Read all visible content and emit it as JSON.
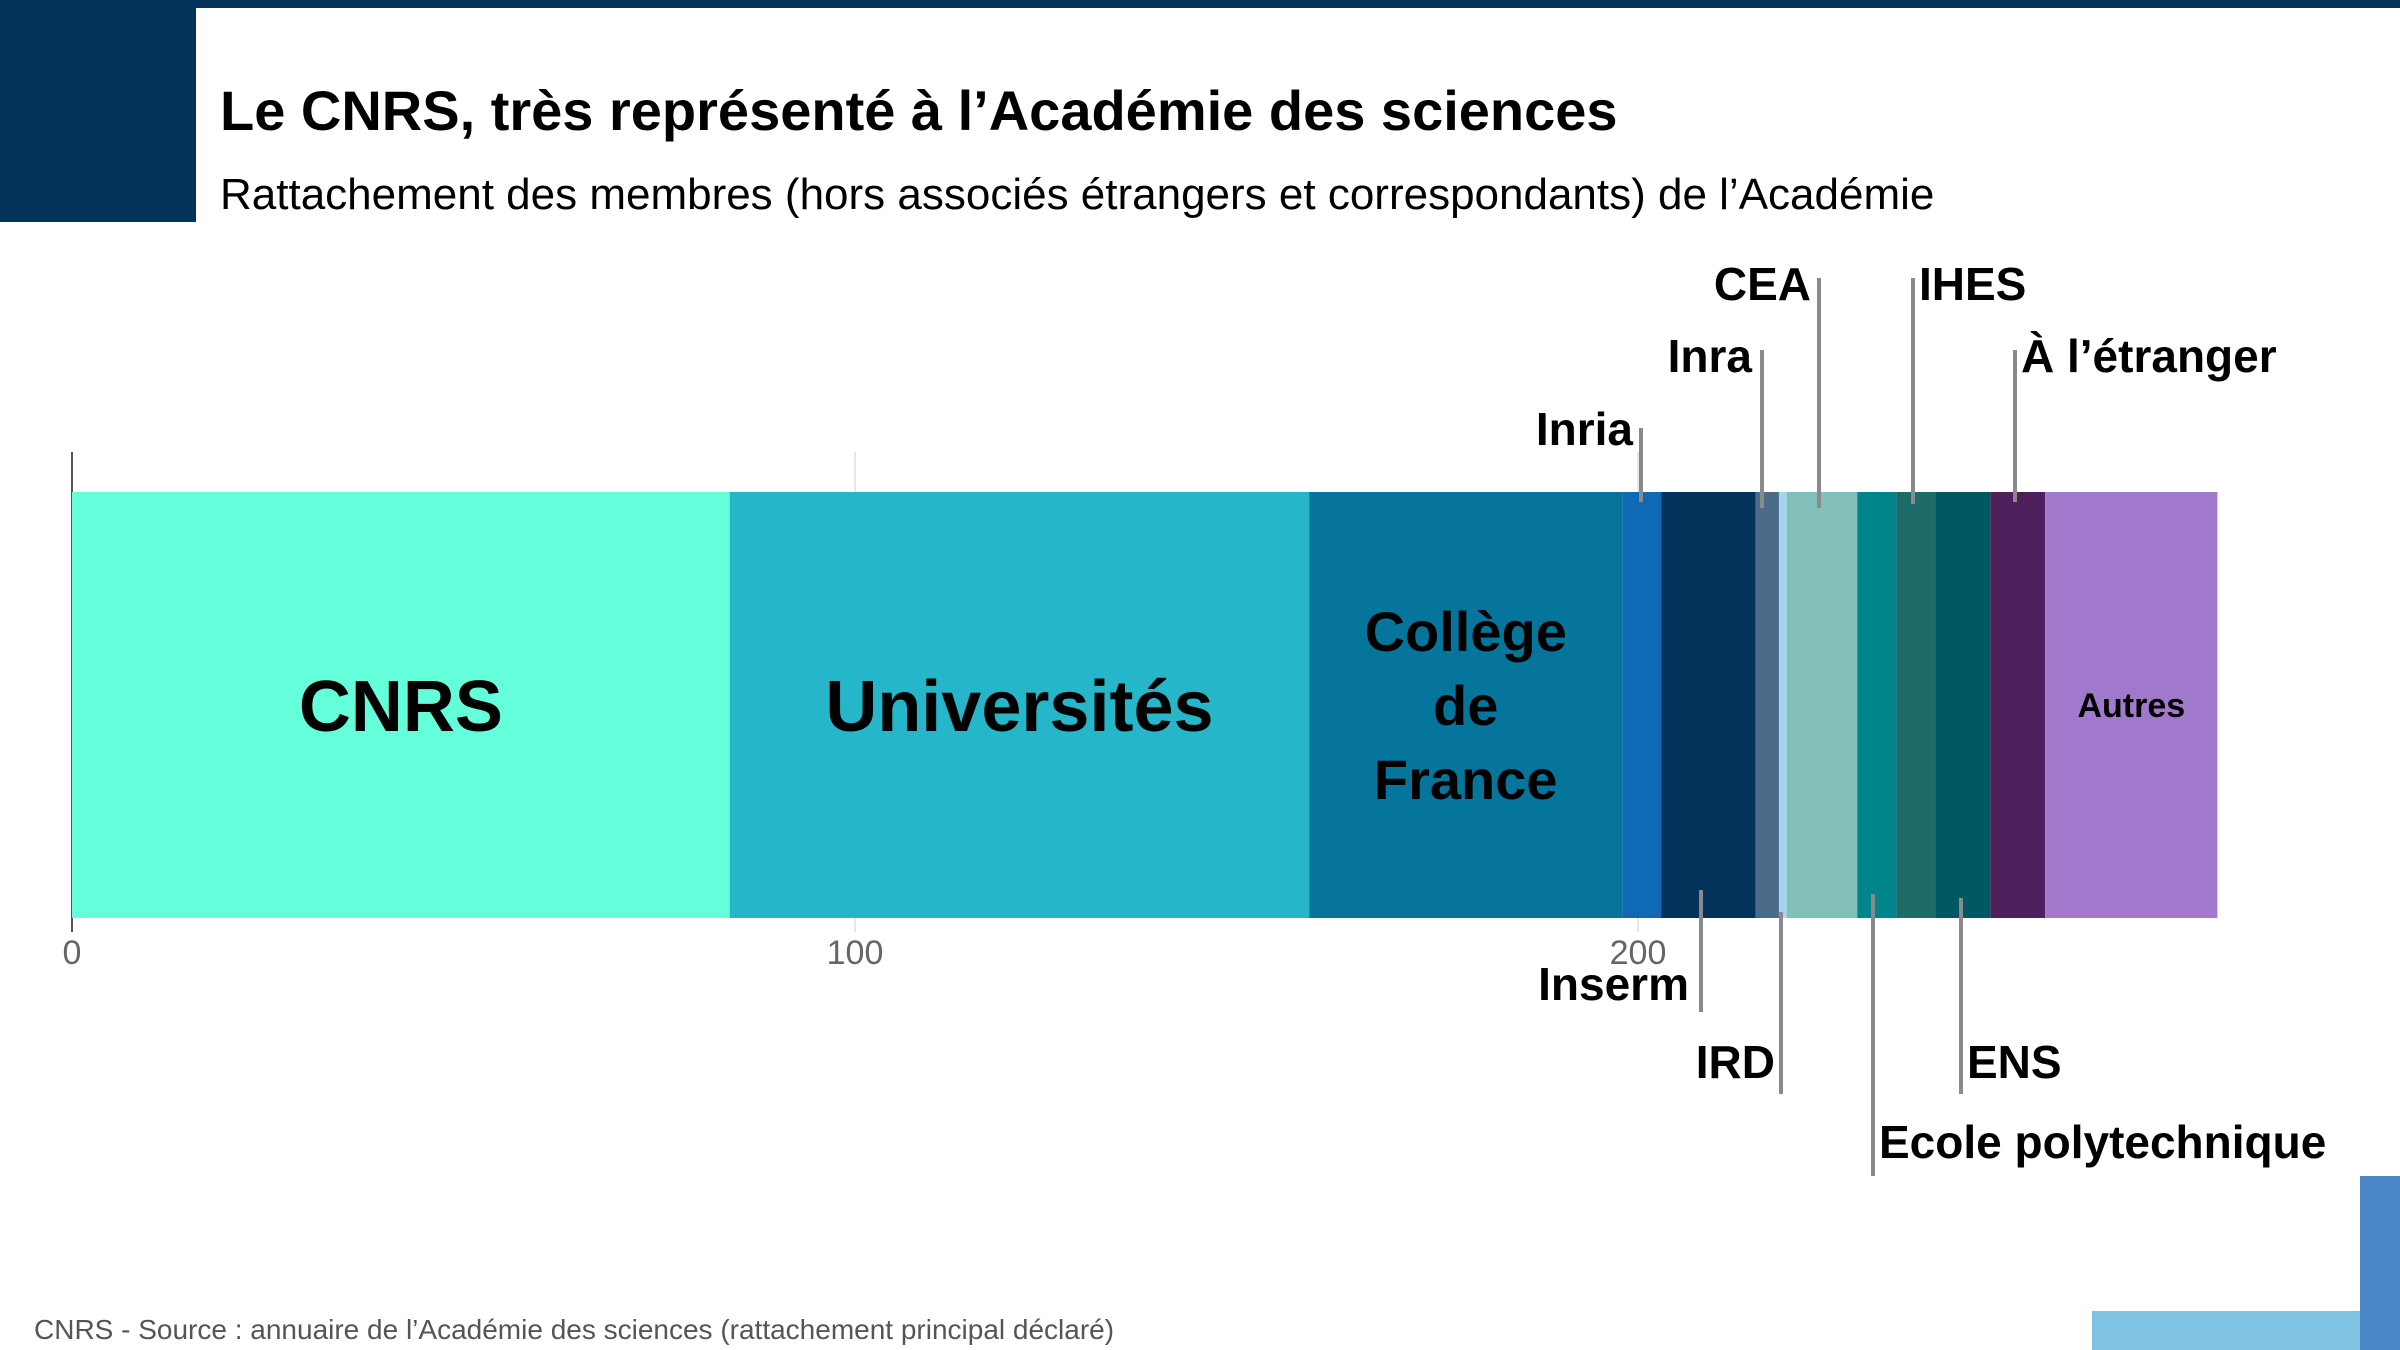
{
  "header": {
    "title": "Le CNRS, très représenté à l’Académie des sciences",
    "subtitle": "Rattachement des membres (hors associés étrangers et correspondants) de l’Académie"
  },
  "footer": {
    "source": "CNRS - Source : annuaire de l’Académie des sciences (rattachement principal déclaré)"
  },
  "colors": {
    "header_band": "#05325b",
    "deco_right": "#4a86c5",
    "deco_bottom": "#7ec3e1"
  },
  "chart_data": {
    "type": "bar",
    "orientation": "horizontal",
    "stacked": true,
    "title": "Le CNRS, très représenté à l’Académie des sciences",
    "subtitle": "Rattachement des membres (hors associés étrangers et correspondants) de l’Académie",
    "xlim": [
      0,
      275
    ],
    "x_ticks": [
      0,
      100,
      200
    ],
    "grid": true,
    "legend": "none",
    "segments": [
      {
        "name": "CNRS",
        "value": 84,
        "color": "#64ffda",
        "label_position": "inside",
        "label_size": "large",
        "label_lines": [
          "CNRS"
        ]
      },
      {
        "name": "Universités",
        "value": 74,
        "color": "#26b6c9",
        "label_position": "inside",
        "label_size": "large",
        "label_lines": [
          "Universités"
        ]
      },
      {
        "name": "Collège de France",
        "value": 40,
        "color": "#06759c",
        "label_position": "inside",
        "label_size": "medium",
        "label_lines": [
          "Collège",
          "de",
          "France"
        ]
      },
      {
        "name": "Inria",
        "value": 5,
        "color": "#0f69b4",
        "label_position": "above"
      },
      {
        "name": "Inserm",
        "value": 12,
        "color": "#05325b",
        "label_position": "below"
      },
      {
        "name": "Inra",
        "value": 3,
        "color": "#4a6b8a",
        "label_position": "above"
      },
      {
        "name": "IRD",
        "value": 1,
        "color": "#a3d5ef",
        "label_position": "below"
      },
      {
        "name": "CEA",
        "value": 9,
        "color": "#82bfb8",
        "label_position": "above"
      },
      {
        "name": "Ecole polytechnique",
        "value": 5,
        "color": "#00868a",
        "label_position": "below"
      },
      {
        "name": "IHES",
        "value": 5,
        "color": "#1e6b69",
        "label_position": "above"
      },
      {
        "name": "ENS",
        "value": 7,
        "color": "#005962",
        "label_position": "below"
      },
      {
        "name": "À l’étranger",
        "value": 7,
        "color": "#4f1f5c",
        "label_position": "above"
      },
      {
        "name": "Autres",
        "value": 22,
        "color": "#a179cc",
        "label_position": "inside",
        "label_size": "small",
        "label_lines": [
          "Autres"
        ]
      }
    ]
  }
}
